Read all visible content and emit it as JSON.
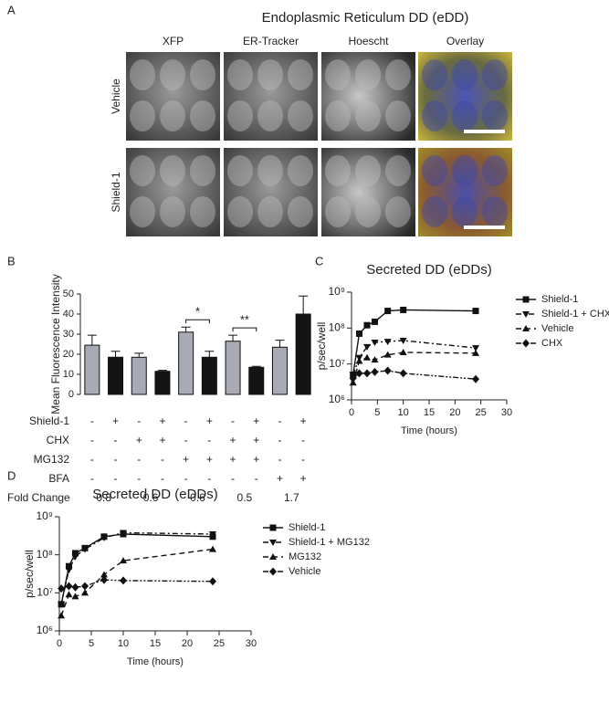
{
  "panel_labels": [
    "A",
    "B",
    "C",
    "D"
  ],
  "panel_a": {
    "title": "Endoplasmic Reticulum DD (eDD)",
    "columns": [
      "XFP",
      "ER-Tracker",
      "Hoescht",
      "Overlay"
    ],
    "rows": [
      "Vehicle",
      "Shield-1"
    ]
  },
  "chart_data": [
    {
      "type": "bar",
      "ylabel": "Mean Fluorescence Intensity",
      "ylim": [
        0,
        50
      ],
      "yticks": [
        0,
        10,
        20,
        30,
        40,
        50
      ],
      "values": [
        24.5,
        18.5,
        18.5,
        11.5,
        31,
        18.5,
        26.5,
        13.5,
        23.5,
        40
      ],
      "errors": [
        5,
        3,
        2,
        0.5,
        2.5,
        3,
        3,
        0.5,
        3.5,
        9
      ],
      "bar_colors": [
        "#a8aab5",
        "#141414"
      ],
      "significance": [
        null,
        null,
        "*",
        "**",
        null
      ],
      "conditions": [
        {
          "name": "Shield-1",
          "signs": [
            "-",
            "+",
            "-",
            "+",
            "-",
            "+",
            "-",
            "+",
            "-",
            "+"
          ]
        },
        {
          "name": "CHX",
          "signs": [
            "-",
            "-",
            "+",
            "+",
            "-",
            "-",
            "+",
            "+",
            "-",
            "-"
          ]
        },
        {
          "name": "MG132",
          "signs": [
            "-",
            "-",
            "-",
            "-",
            "+",
            "+",
            "+",
            "+",
            "-",
            "-"
          ]
        },
        {
          "name": "BFA",
          "signs": [
            "-",
            "-",
            "-",
            "-",
            "-",
            "-",
            "-",
            "-",
            "+",
            "+"
          ]
        }
      ],
      "fold_change": {
        "label": "Fold Change",
        "values": [
          0.8,
          0.6,
          0.6,
          0.5,
          1.7
        ]
      }
    },
    {
      "type": "line",
      "title": "Secreted DD (eDDs)",
      "xlabel": "Time (hours)",
      "ylabel": "p/sec/well",
      "log_y": true,
      "xlim": [
        0,
        30
      ],
      "xticks": [
        0,
        5,
        10,
        15,
        20,
        25,
        30
      ],
      "ylim": [
        1000000,
        1000000000
      ],
      "yticks": [
        {
          "value": 1000000,
          "label": "10⁶"
        },
        {
          "value": 10000000,
          "label": "10⁷"
        },
        {
          "value": 100000000,
          "label": "10⁸"
        },
        {
          "value": 1000000000,
          "label": "10⁹"
        }
      ],
      "legend": "upper right",
      "x": [
        0.3,
        1.5,
        3,
        4.5,
        7,
        10,
        24
      ],
      "series": [
        {
          "name": "Shield-1",
          "color": "#111111",
          "marker": "square",
          "line_style": "solid",
          "values": [
            5000000,
            70000000,
            120000000,
            150000000,
            300000000,
            320000000,
            300000000
          ]
        },
        {
          "name": "Shield-1 + CHX",
          "color": "#111111",
          "marker": "triangle-down",
          "line_style": "dash-dot",
          "values": [
            5000000,
            15000000,
            30000000,
            40000000,
            42000000,
            45000000,
            28000000
          ]
        },
        {
          "name": "Vehicle",
          "color": "#111111",
          "marker": "triangle-up",
          "line_style": "dashed",
          "values": [
            3000000,
            12000000,
            15000000,
            13000000,
            18000000,
            21000000,
            20000000
          ]
        },
        {
          "name": "CHX",
          "color": "#111111",
          "marker": "diamond",
          "line_style": "dash-dot-dot",
          "values": [
            4000000,
            5500000,
            5500000,
            6000000,
            6500000,
            5500000,
            3800000
          ]
        }
      ]
    },
    {
      "type": "line",
      "title": "Secreted DD (eDDs)",
      "xlabel": "Time (hours)",
      "ylabel": "p/sec/well",
      "log_y": true,
      "xlim": [
        0,
        30
      ],
      "xticks": [
        0,
        5,
        10,
        15,
        20,
        25,
        30
      ],
      "ylim": [
        1000000,
        1000000000
      ],
      "yticks": [
        {
          "value": 1000000,
          "label": "10⁶"
        },
        {
          "value": 10000000,
          "label": "10⁷"
        },
        {
          "value": 100000000,
          "label": "10⁸"
        },
        {
          "value": 1000000000,
          "label": "10⁹"
        }
      ],
      "legend": "upper right",
      "x": [
        0.3,
        1.5,
        2.5,
        4,
        7,
        10,
        24
      ],
      "series": [
        {
          "name": "Shield-1",
          "color": "#111111",
          "marker": "square",
          "line_style": "solid",
          "values": [
            5000000,
            50000000,
            110000000,
            150000000,
            300000000,
            350000000,
            300000000
          ]
        },
        {
          "name": "Shield-1 + MG132",
          "color": "#111111",
          "marker": "triangle-down",
          "line_style": "dash-dot",
          "values": [
            5000000,
            40000000,
            90000000,
            140000000,
            280000000,
            380000000,
            350000000
          ]
        },
        {
          "name": "MG132",
          "color": "#111111",
          "marker": "triangle-up",
          "line_style": "dashed",
          "values": [
            2500000,
            9000000,
            8000000,
            10000000,
            30000000,
            70000000,
            140000000
          ]
        },
        {
          "name": "Vehicle",
          "color": "#111111",
          "marker": "diamond",
          "line_style": "dash-dot-dot",
          "values": [
            13000000,
            15000000,
            14000000,
            15000000,
            22000000,
            21000000,
            20000000
          ]
        }
      ]
    }
  ]
}
